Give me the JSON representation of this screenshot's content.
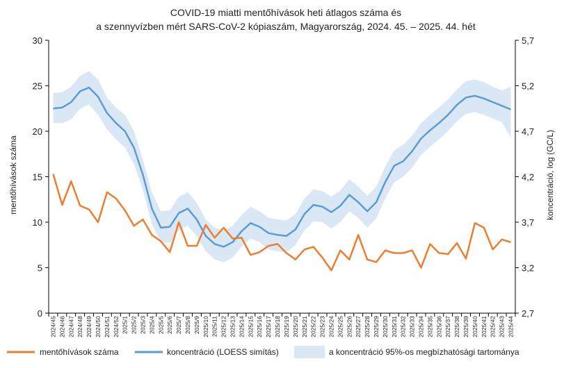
{
  "chart_data": {
    "type": "line",
    "title": "COVID-19 miatti mentőhívások heti átlagos száma és",
    "subtitle": "a szennyvízben mért SARS-CoV-2 kópiaszám, Magyarország, 2024. 45. – 2025. 44. hét",
    "ylabel": "mentőhívások száma",
    "y2label": "koncentráció, log (GC/L)",
    "ylim": [
      0,
      30
    ],
    "y2lim": [
      2.7,
      5.7
    ],
    "yticks": [
      "0",
      "5",
      "10",
      "15",
      "20",
      "25",
      "30"
    ],
    "y2ticks": [
      "2,7",
      "3,2",
      "3,7",
      "4,2",
      "4,7",
      "5,2",
      "5,7"
    ],
    "grid": false,
    "legend_position": "bottom",
    "categories": [
      "2024/45",
      "2024/46",
      "2024/47",
      "2024/48",
      "2024/49",
      "2024/50",
      "2024/51",
      "2024/52",
      "2025/1",
      "2025/2",
      "2025/3",
      "2025/4",
      "2025/5",
      "2025/6",
      "2025/7",
      "2025/8",
      "2025/9",
      "2025/10",
      "2025/11",
      "2025/12",
      "2025/13",
      "2025/14",
      "2025/15",
      "2025/16",
      "2025/17",
      "2025/18",
      "2025/19",
      "2025/20",
      "2025/21",
      "2025/22",
      "2025/23",
      "2025/24",
      "2025/25",
      "2025/26",
      "2025/27",
      "2025/28",
      "2025/29",
      "2025/30",
      "2025/31",
      "2025/32",
      "2025/33",
      "2025/34",
      "2025/35",
      "2025/36",
      "2025/37",
      "2025/38",
      "2025/39",
      "2025/40",
      "2025/41",
      "2025/42",
      "2025/43",
      "2025/44"
    ],
    "series": [
      {
        "name": "mentőhívások száma",
        "axis": "left",
        "color": "#ed7d31",
        "values": [
          15.3,
          11.9,
          14.5,
          11.8,
          11.4,
          10.0,
          13.3,
          12.6,
          11.3,
          9.6,
          10.3,
          8.6,
          7.9,
          6.7,
          10.0,
          7.4,
          7.4,
          9.7,
          8.3,
          9.4,
          8.2,
          8.3,
          6.4,
          6.7,
          7.4,
          7.6,
          6.6,
          5.9,
          7.0,
          7.3,
          6.1,
          4.7,
          6.9,
          5.9,
          8.6,
          5.9,
          5.6,
          6.9,
          6.6,
          6.6,
          6.9,
          5.0,
          7.6,
          6.6,
          6.5,
          7.7,
          6.0,
          9.9,
          9.4,
          7.0,
          8.1,
          7.8
        ]
      },
      {
        "name": "koncentráció (LOESS simítás)",
        "axis": "right",
        "color": "#5b9bd5",
        "values": [
          4.95,
          4.96,
          5.02,
          5.14,
          5.18,
          5.08,
          4.9,
          4.79,
          4.7,
          4.52,
          4.22,
          3.85,
          3.64,
          3.65,
          3.8,
          3.85,
          3.73,
          3.55,
          3.46,
          3.43,
          3.48,
          3.6,
          3.69,
          3.65,
          3.58,
          3.56,
          3.55,
          3.62,
          3.79,
          3.89,
          3.87,
          3.81,
          3.88,
          4.0,
          3.92,
          3.82,
          3.92,
          4.14,
          4.32,
          4.37,
          4.48,
          4.62,
          4.71,
          4.79,
          4.88,
          4.99,
          5.07,
          5.09,
          5.06,
          5.02,
          4.98,
          4.94
        ]
      },
      {
        "name": "a koncentráció 95%-os megbízhatósági tartománya",
        "axis": "right",
        "color": "#dae8f6",
        "type": "band",
        "lower": [
          4.79,
          4.79,
          4.83,
          4.95,
          4.99,
          4.88,
          4.72,
          4.61,
          4.52,
          4.34,
          4.05,
          3.68,
          3.48,
          3.47,
          3.61,
          3.66,
          3.55,
          3.38,
          3.29,
          3.26,
          3.31,
          3.43,
          3.52,
          3.48,
          3.4,
          3.38,
          3.37,
          3.45,
          3.61,
          3.71,
          3.7,
          3.63,
          3.7,
          3.82,
          3.75,
          3.64,
          3.74,
          3.96,
          4.14,
          4.2,
          4.3,
          4.44,
          4.53,
          4.61,
          4.7,
          4.81,
          4.89,
          4.91,
          4.88,
          4.84,
          4.8,
          4.63
        ],
        "upper": [
          5.12,
          5.13,
          5.19,
          5.31,
          5.36,
          5.27,
          5.07,
          4.96,
          4.88,
          4.7,
          4.39,
          4.03,
          3.82,
          3.83,
          3.98,
          4.03,
          3.91,
          3.73,
          3.64,
          3.61,
          3.66,
          3.78,
          3.87,
          3.82,
          3.75,
          3.73,
          3.72,
          3.79,
          3.96,
          4.06,
          4.04,
          3.98,
          4.05,
          4.17,
          4.09,
          3.99,
          4.09,
          4.31,
          4.49,
          4.55,
          4.65,
          4.79,
          4.88,
          4.96,
          5.05,
          5.16,
          5.25,
          5.27,
          5.24,
          5.19,
          5.15,
          5.19
        ]
      }
    ]
  }
}
